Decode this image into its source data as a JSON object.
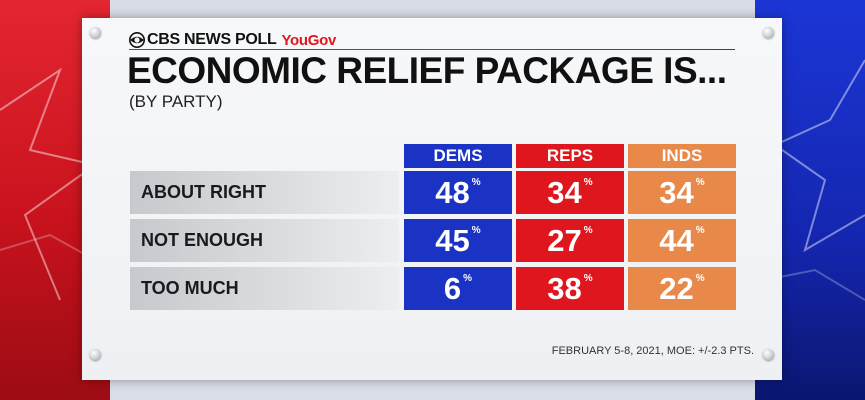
{
  "header": {
    "brand": "CBS NEWS POLL",
    "partner": "YouGov",
    "title": "ECONOMIC RELIEF PACKAGE IS...",
    "subtitle": "(BY PARTY)"
  },
  "chart_data": {
    "type": "table",
    "columns": [
      "DEMS",
      "REPS",
      "INDS"
    ],
    "column_colors": [
      "#1a33c4",
      "#e0161e",
      "#e8894a"
    ],
    "rows": [
      {
        "label": "ABOUT RIGHT",
        "values": [
          48,
          34,
          34
        ]
      },
      {
        "label": "NOT ENOUGH",
        "values": [
          45,
          27,
          44
        ]
      },
      {
        "label": "TOO MUCH",
        "values": [
          6,
          38,
          22
        ]
      }
    ],
    "unit_symbol": "%"
  },
  "footer": {
    "source": "FEBRUARY 5-8, 2021, MOE: +/-2.3 PTS."
  }
}
